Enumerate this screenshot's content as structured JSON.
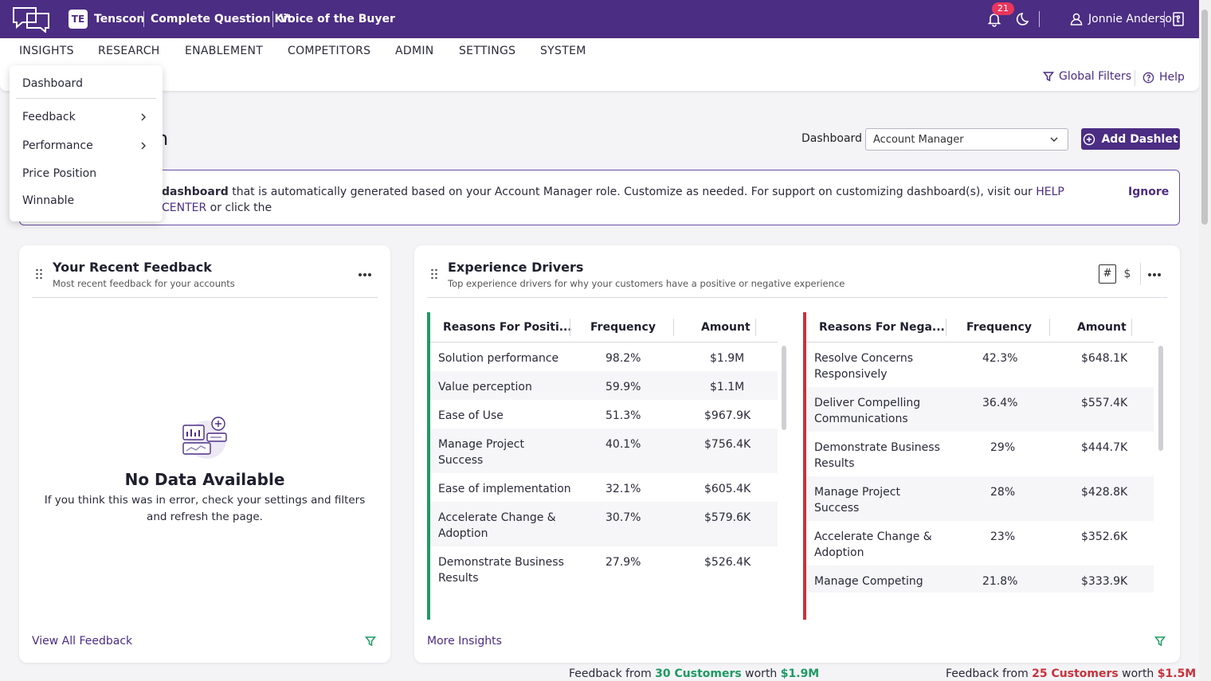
{
  "topbar": {
    "org_abbr": "TE",
    "org_name": "Tenscon",
    "kit": "Complete Question Kit",
    "program": "Voice of the Buyer",
    "notifications": "21",
    "user_name": "Jonnie Anderson"
  },
  "nav": {
    "items": [
      "INSIGHTS",
      "RESEARCH",
      "ENABLEMENT",
      "COMPETITORS",
      "ADMIN",
      "SETTINGS",
      "SYSTEM"
    ]
  },
  "subbar": {
    "global_filters": "Global Filters",
    "help": "Help"
  },
  "menu": {
    "items": [
      "Dashboard",
      "Feedback",
      "Performance",
      "Price Position",
      "Winnable"
    ]
  },
  "page": {
    "title_fragment": "n",
    "dashboard_label": "Dashboard",
    "dashboard_value": "Account Manager",
    "add_dashlet": "Add Dashlet"
  },
  "banner": {
    "bold": "dashboard",
    "text": " that is automatically generated based on your Account Manager role. Customize as needed. For support on customizing dashboard(s), visit our ",
    "link": "HELP CENTER",
    "tail": " or click the",
    "ignore": "Ignore"
  },
  "recent_feedback": {
    "title": "Your Recent Feedback",
    "subtitle": "Most recent feedback for your accounts",
    "empty_title": "No Data Available",
    "empty_text": "If you think this was in error, check your settings and filters and refresh the page.",
    "footer_link": "View All Feedback"
  },
  "drivers": {
    "title": "Experience Drivers",
    "subtitle": "Top experience drivers for why your customers have a positive or negative experience",
    "toggle_count": "#",
    "toggle_amount": "$",
    "footer_link": "More Insights",
    "colors": {
      "positive": "#1e9a63",
      "negative": "#c8323b"
    },
    "positive": {
      "headers": [
        "Reasons For Positi...",
        "Frequency",
        "Amount"
      ],
      "rows": [
        {
          "reason": "Solution performance",
          "frequency": "98.2%",
          "amount": "$1.9M"
        },
        {
          "reason": "Value perception",
          "frequency": "59.9%",
          "amount": "$1.1M"
        },
        {
          "reason": "Ease of Use",
          "frequency": "51.3%",
          "amount": "$967.9K"
        },
        {
          "reason": "Manage Project Success",
          "frequency": "40.1%",
          "amount": "$756.4K"
        },
        {
          "reason": "Ease of implementation",
          "frequency": "32.1%",
          "amount": "$605.4K"
        },
        {
          "reason": "Accelerate Change & Adoption",
          "frequency": "30.7%",
          "amount": "$579.6K"
        },
        {
          "reason": "Demonstrate Business Results",
          "frequency": "27.9%",
          "amount": "$526.4K"
        }
      ],
      "footer_prefix": "Feedback from ",
      "customers": "30 Customers",
      "footer_mid": " worth ",
      "worth": "$1.9M"
    },
    "negative": {
      "headers": [
        "Reasons For Nega...",
        "Frequency",
        "Amount"
      ],
      "rows": [
        {
          "reason": "Resolve Concerns Responsively",
          "frequency": "42.3%",
          "amount": "$648.1K"
        },
        {
          "reason": "Deliver Compelling Communications",
          "frequency": "36.4%",
          "amount": "$557.4K"
        },
        {
          "reason": "Demonstrate Business Results",
          "frequency": "29%",
          "amount": "$444.7K"
        },
        {
          "reason": "Manage Project Success",
          "frequency": "28%",
          "amount": "$428.8K"
        },
        {
          "reason": "Accelerate Change & Adoption",
          "frequency": "23%",
          "amount": "$352.6K"
        },
        {
          "reason": "Manage Competing",
          "frequency": "21.8%",
          "amount": "$333.9K"
        }
      ],
      "footer_prefix": "Feedback from ",
      "customers": "25 Customers",
      "footer_mid": " worth ",
      "worth": "$1.5M"
    }
  }
}
